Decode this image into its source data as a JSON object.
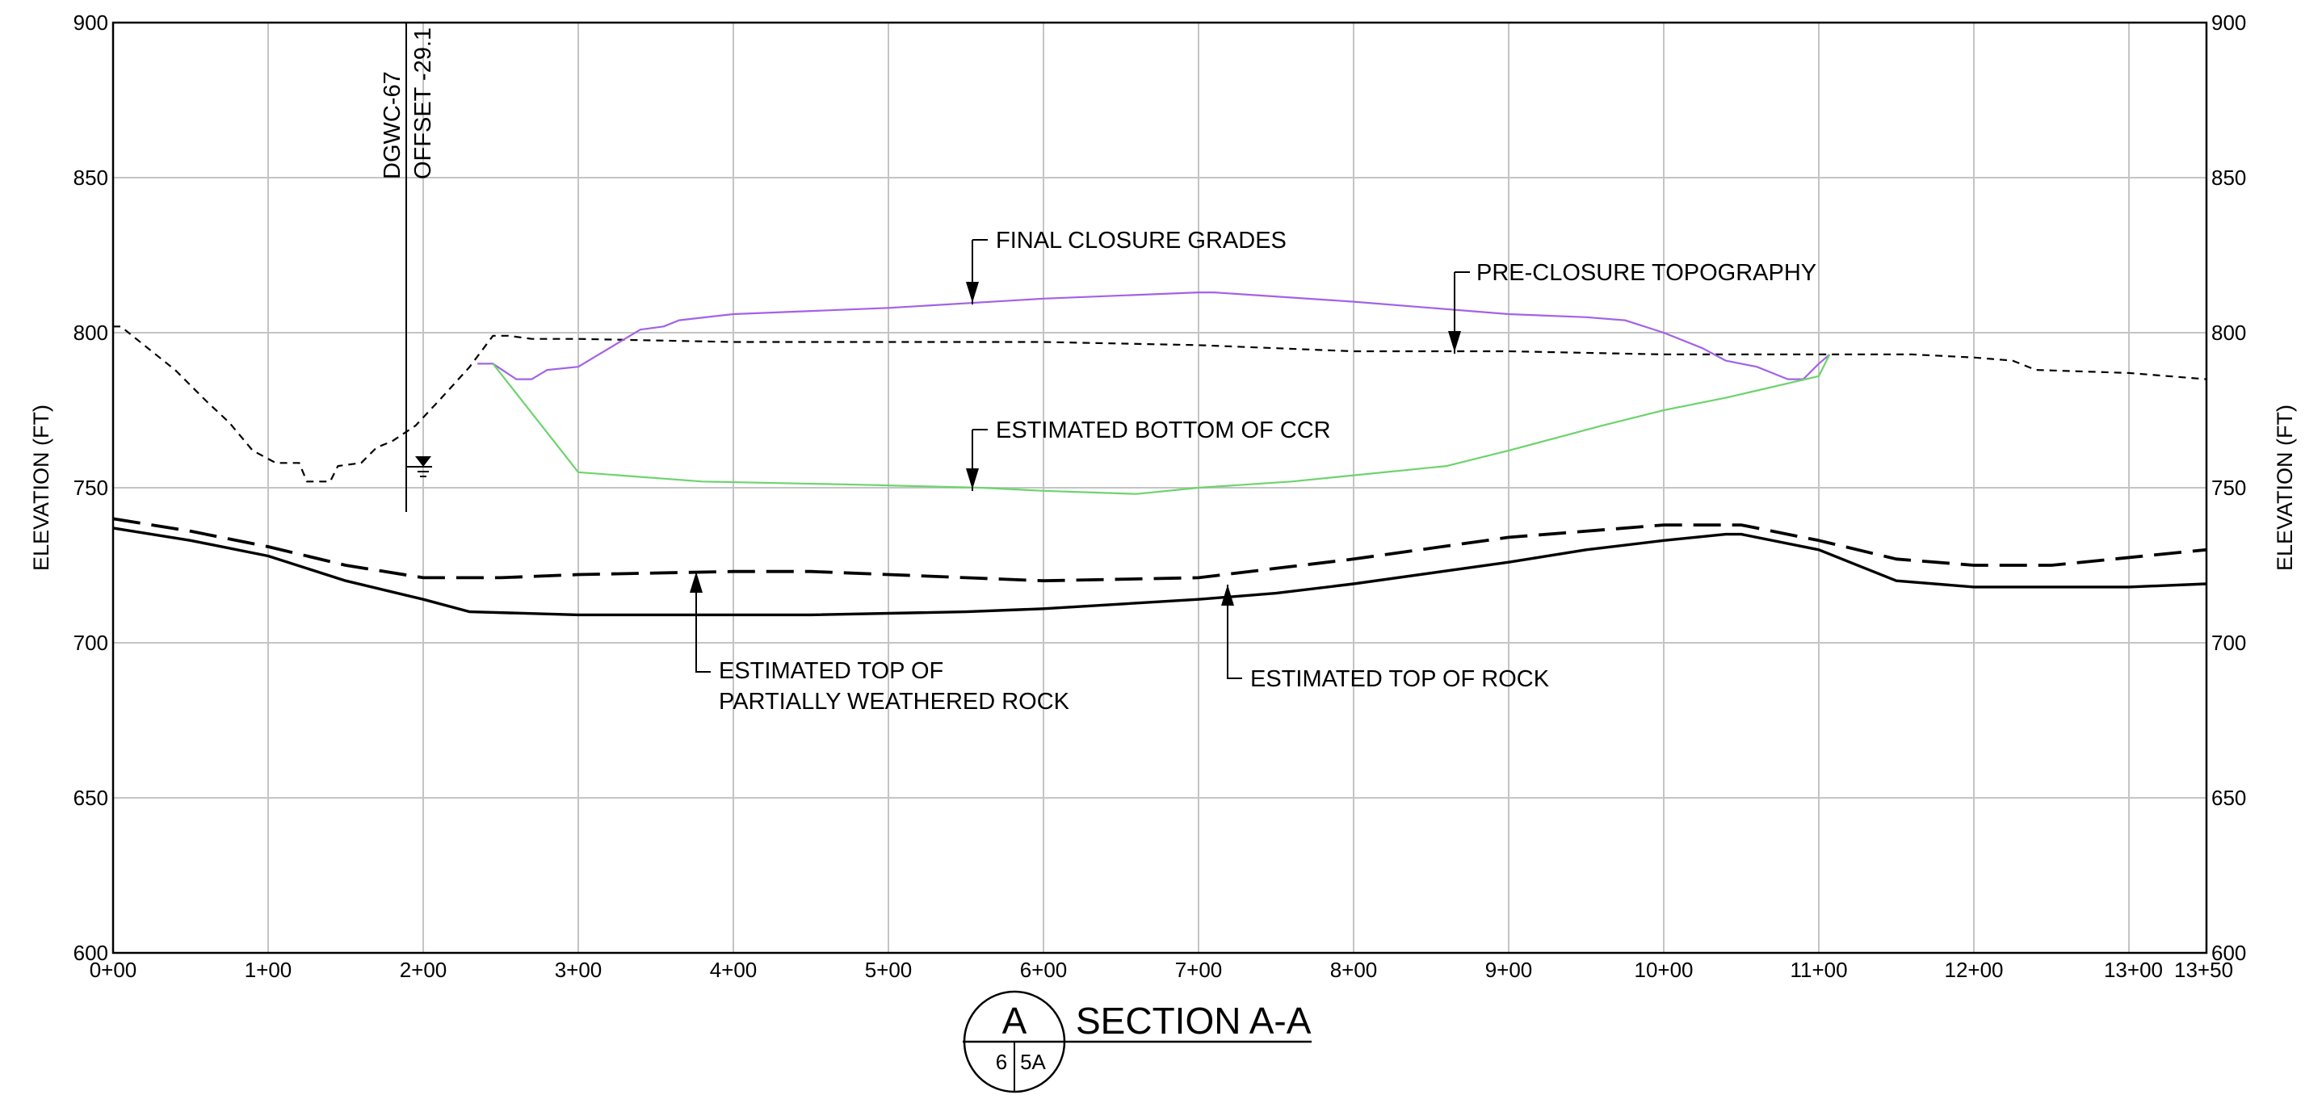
{
  "chart_data": {
    "type": "line",
    "xlabel": "",
    "ylabel": "ELEVATION (FT)",
    "ylim": [
      600,
      900
    ],
    "xlim": [
      0,
      1350
    ],
    "grid": true,
    "x_ticks": [
      {
        "v": 0,
        "label": "0+00"
      },
      {
        "v": 100,
        "label": "1+00"
      },
      {
        "v": 200,
        "label": "2+00"
      },
      {
        "v": 300,
        "label": "3+00"
      },
      {
        "v": 400,
        "label": "4+00"
      },
      {
        "v": 500,
        "label": "5+00"
      },
      {
        "v": 600,
        "label": "6+00"
      },
      {
        "v": 700,
        "label": "7+00"
      },
      {
        "v": 800,
        "label": "8+00"
      },
      {
        "v": 900,
        "label": "9+00"
      },
      {
        "v": 1000,
        "label": "10+00"
      },
      {
        "v": 1100,
        "label": "11+00"
      },
      {
        "v": 1200,
        "label": "12+00"
      },
      {
        "v": 1300,
        "label": "13+00"
      },
      {
        "v": 1350,
        "label": "13+50"
      }
    ],
    "y_ticks": [
      600,
      650,
      700,
      750,
      800,
      850,
      900
    ],
    "series": [
      {
        "key": "pre_closure",
        "color": "#000000",
        "points": [
          [
            0,
            802
          ],
          [
            5,
            802
          ],
          [
            20,
            796
          ],
          [
            40,
            788
          ],
          [
            60,
            778
          ],
          [
            75,
            771
          ],
          [
            90,
            762
          ],
          [
            105,
            758
          ],
          [
            120,
            758
          ],
          [
            125,
            752
          ],
          [
            140,
            752
          ],
          [
            145,
            757
          ],
          [
            160,
            758
          ],
          [
            170,
            763
          ],
          [
            180,
            765
          ],
          [
            195,
            770
          ],
          [
            210,
            778
          ],
          [
            230,
            789
          ],
          [
            245,
            799
          ],
          [
            255,
            799
          ],
          [
            270,
            798
          ],
          [
            300,
            798
          ],
          [
            400,
            797
          ],
          [
            500,
            797
          ],
          [
            600,
            797
          ],
          [
            700,
            796
          ],
          [
            800,
            794
          ],
          [
            900,
            794
          ],
          [
            1000,
            793
          ],
          [
            1100,
            793
          ],
          [
            1160,
            793
          ],
          [
            1200,
            792
          ],
          [
            1225,
            791
          ],
          [
            1240,
            788
          ],
          [
            1300,
            787
          ],
          [
            1350,
            785
          ]
        ]
      },
      {
        "key": "final_closure",
        "color": "#a262e6",
        "points": [
          [
            235,
            790
          ],
          [
            245,
            790
          ],
          [
            260,
            785
          ],
          [
            270,
            785
          ],
          [
            280,
            788
          ],
          [
            300,
            789
          ],
          [
            320,
            795
          ],
          [
            340,
            801
          ],
          [
            355,
            802
          ],
          [
            365,
            804
          ],
          [
            400,
            806
          ],
          [
            500,
            808
          ],
          [
            600,
            811
          ],
          [
            700,
            813
          ],
          [
            710,
            813
          ],
          [
            800,
            810
          ],
          [
            850,
            808
          ],
          [
            900,
            806
          ],
          [
            950,
            805
          ],
          [
            975,
            804
          ],
          [
            1000,
            800
          ],
          [
            1025,
            795
          ],
          [
            1040,
            791
          ],
          [
            1060,
            789
          ],
          [
            1070,
            787
          ],
          [
            1080,
            785
          ],
          [
            1090,
            785
          ],
          [
            1100,
            790
          ],
          [
            1107,
            793
          ]
        ]
      },
      {
        "key": "bottom_ccr",
        "color": "#6cd46c",
        "points": [
          [
            245,
            790
          ],
          [
            300,
            755
          ],
          [
            380,
            752
          ],
          [
            480,
            751
          ],
          [
            560,
            750
          ],
          [
            600,
            749
          ],
          [
            660,
            748
          ],
          [
            700,
            750
          ],
          [
            760,
            752
          ],
          [
            800,
            754
          ],
          [
            860,
            757
          ],
          [
            900,
            762
          ],
          [
            930,
            766
          ],
          [
            960,
            770
          ],
          [
            1000,
            775
          ],
          [
            1040,
            779
          ],
          [
            1100,
            786
          ],
          [
            1107,
            793
          ]
        ]
      },
      {
        "key": "pwr",
        "color": "#000000",
        "points": [
          [
            0,
            740
          ],
          [
            50,
            736
          ],
          [
            100,
            731
          ],
          [
            150,
            725
          ],
          [
            200,
            721
          ],
          [
            250,
            721
          ],
          [
            300,
            722
          ],
          [
            400,
            723
          ],
          [
            450,
            723
          ],
          [
            500,
            722
          ],
          [
            550,
            721
          ],
          [
            600,
            720
          ],
          [
            700,
            721
          ],
          [
            750,
            724
          ],
          [
            800,
            727
          ],
          [
            900,
            734
          ],
          [
            1000,
            738
          ],
          [
            1050,
            738
          ],
          [
            1100,
            733
          ],
          [
            1150,
            727
          ],
          [
            1200,
            725
          ],
          [
            1250,
            725
          ],
          [
            1350,
            730
          ]
        ]
      },
      {
        "key": "rock",
        "color": "#000000",
        "points": [
          [
            0,
            737
          ],
          [
            50,
            733
          ],
          [
            100,
            728
          ],
          [
            150,
            720
          ],
          [
            200,
            714
          ],
          [
            230,
            710
          ],
          [
            300,
            709
          ],
          [
            450,
            709
          ],
          [
            550,
            710
          ],
          [
            600,
            711
          ],
          [
            700,
            714
          ],
          [
            750,
            716
          ],
          [
            800,
            719
          ],
          [
            900,
            726
          ],
          [
            950,
            730
          ],
          [
            1000,
            733
          ],
          [
            1040,
            735
          ],
          [
            1050,
            735
          ],
          [
            1100,
            730
          ],
          [
            1150,
            720
          ],
          [
            1200,
            718
          ],
          [
            1300,
            718
          ],
          [
            1350,
            719
          ]
        ]
      }
    ],
    "annotations": [
      {
        "key": "final",
        "lines": [
          "FINAL CLOSURE GRADES"
        ]
      },
      {
        "key": "pre",
        "lines": [
          "PRE-CLOSURE TOPOGRAPHY"
        ]
      },
      {
        "key": "ccr",
        "lines": [
          "ESTIMATED BOTTOM OF CCR"
        ]
      },
      {
        "key": "pwr",
        "lines": [
          "ESTIMATED TOP OF",
          "PARTIALLY WEATHERED ROCK"
        ]
      },
      {
        "key": "rock",
        "lines": [
          "ESTIMATED TOP OF ROCK"
        ]
      }
    ],
    "well": {
      "name": "DGWC-67",
      "offset": "OFFSET -29.1",
      "x": 189,
      "top": 900,
      "bottom": 742,
      "water_level": 757
    }
  },
  "section": {
    "letter": "A",
    "title": "SECTION A-A",
    "sheet_left": "6",
    "sheet_right": "5A"
  }
}
